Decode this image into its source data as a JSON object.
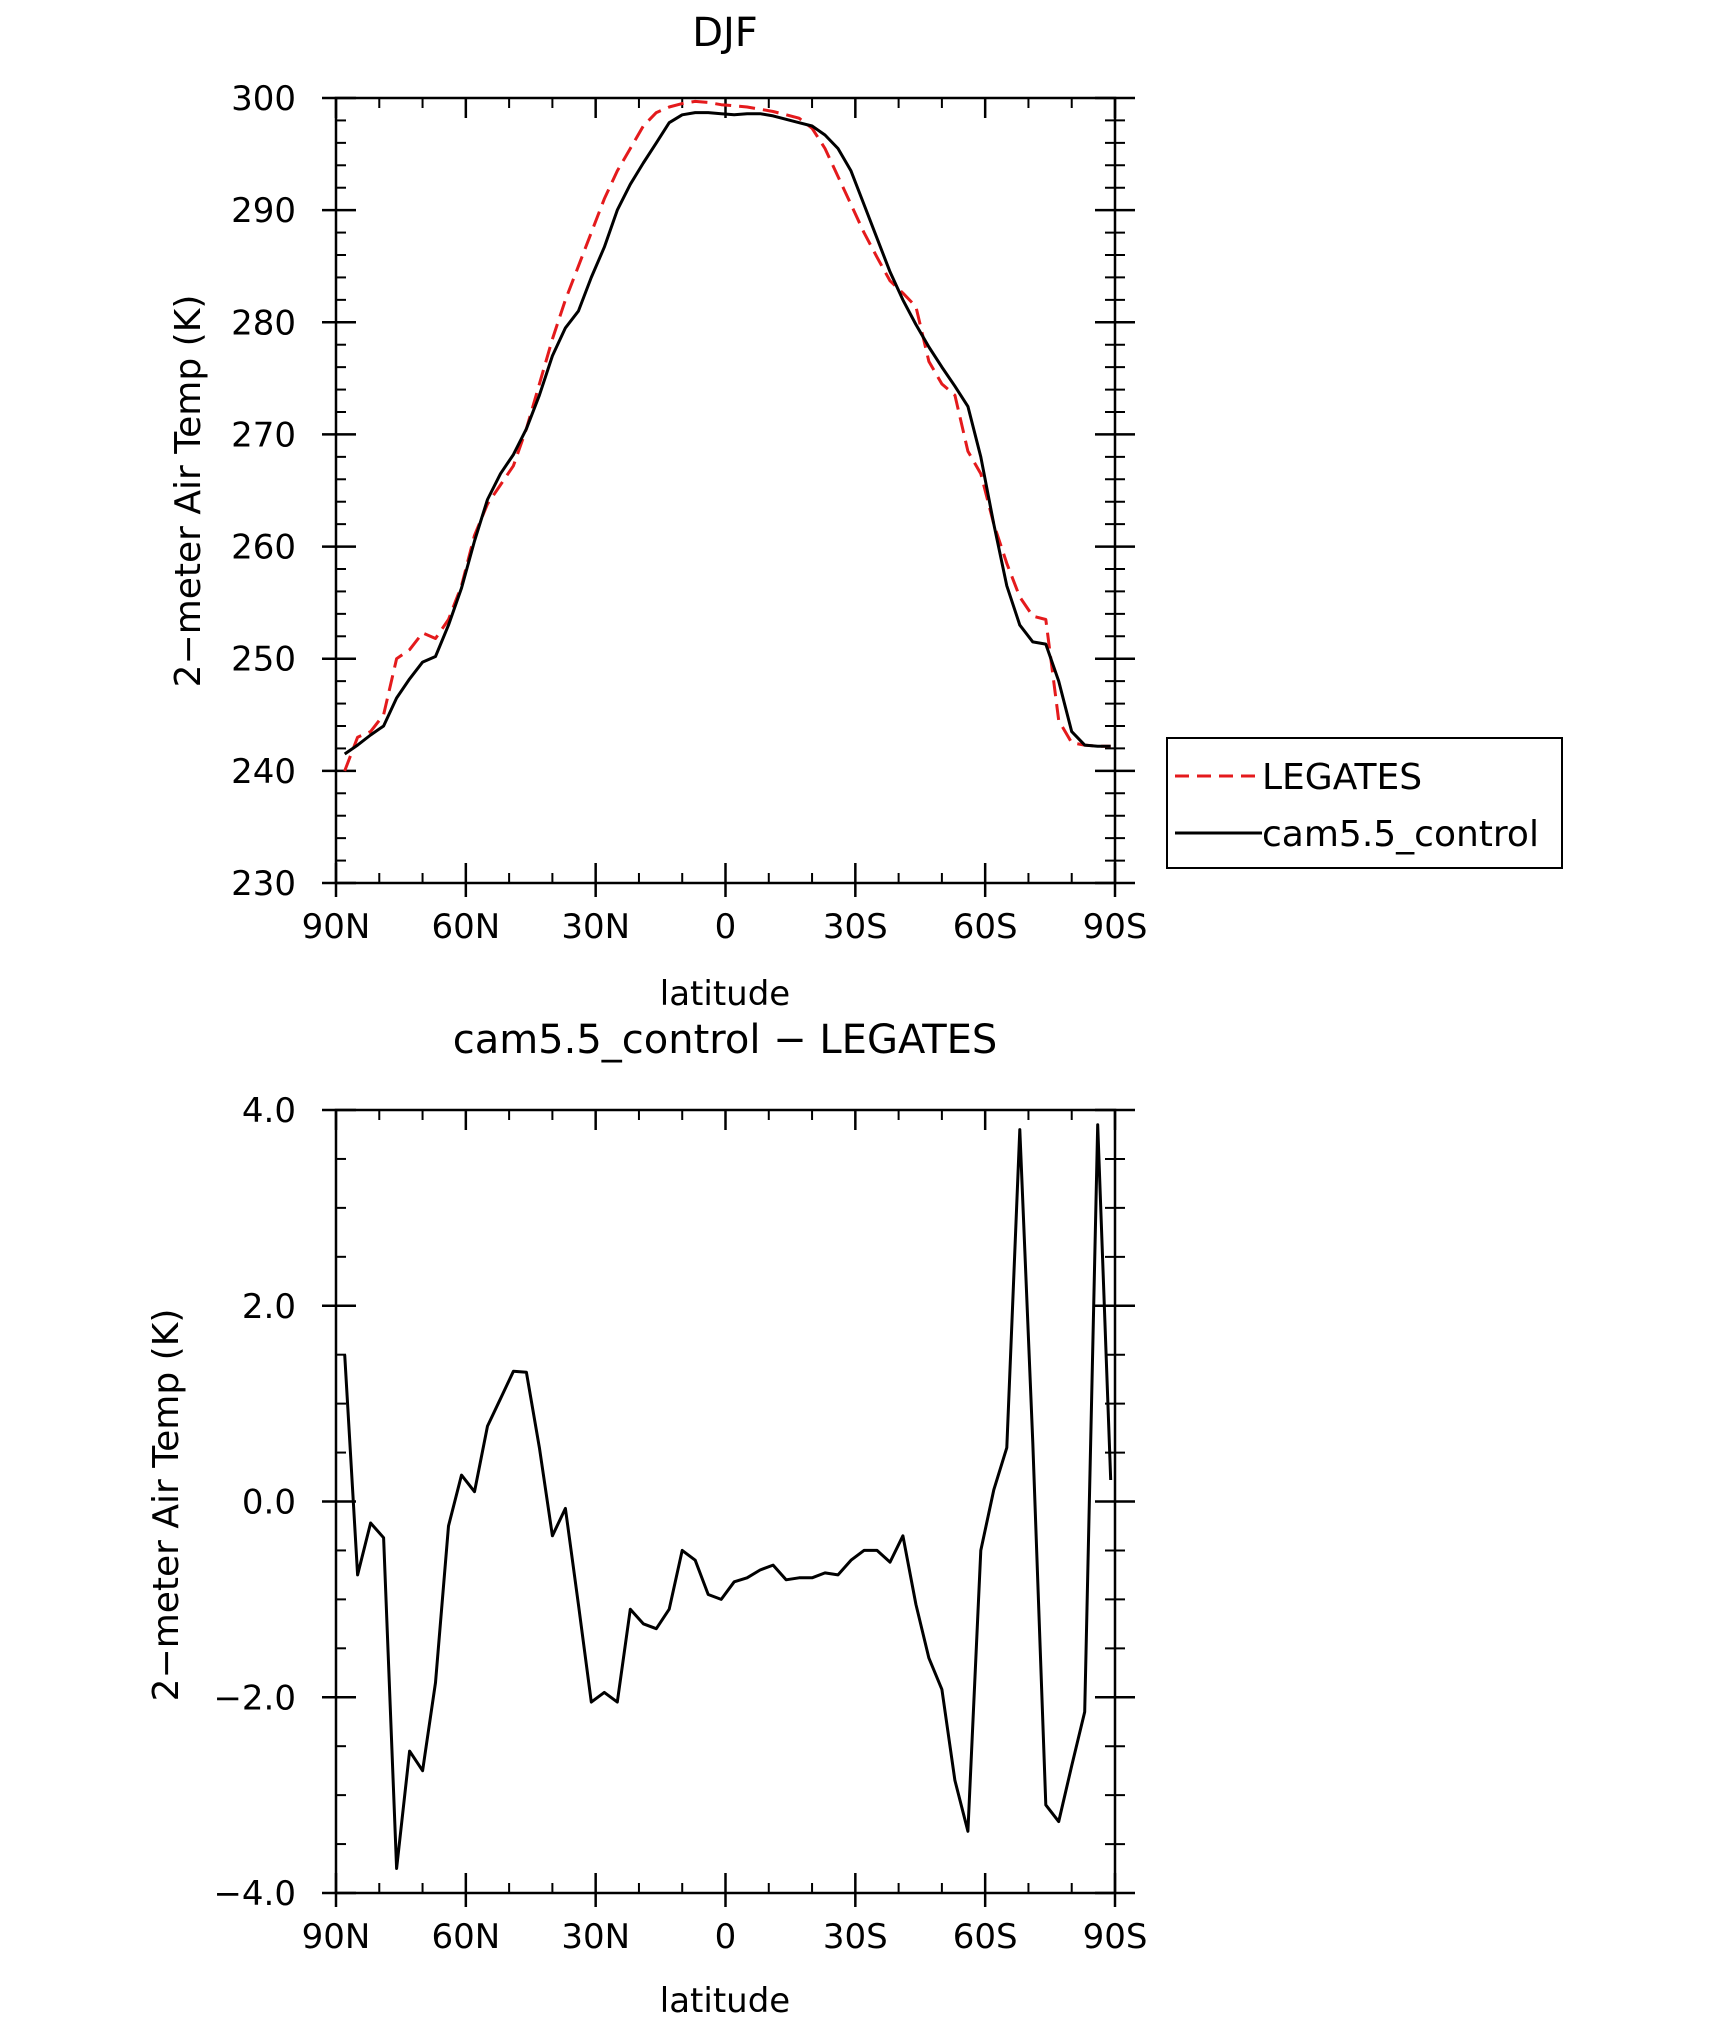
{
  "chart_data": [
    {
      "type": "line",
      "title": "DJF",
      "xlabel": "latitude",
      "ylabel": "2−meter Air Temp (K)",
      "xlim": [
        90,
        -90
      ],
      "ylim": [
        230,
        300
      ],
      "x_ticks": [
        90,
        60,
        30,
        0,
        -30,
        -60,
        -90
      ],
      "x_tick_labels": [
        "90N",
        "60N",
        "30N",
        "0",
        "30S",
        "60S",
        "90S"
      ],
      "y_ticks": [
        230,
        240,
        250,
        260,
        270,
        280,
        290,
        300
      ],
      "y_tick_labels": [
        "230",
        "240",
        "250",
        "260",
        "270",
        "280",
        "290",
        "300"
      ],
      "legend": {
        "position": "right",
        "entries": [
          "LEGATES",
          "cam5.5_control"
        ]
      },
      "series": [
        {
          "name": "LEGATES",
          "color": "#e41a1c",
          "dash": "dashed",
          "x": [
            88,
            85,
            82,
            79,
            76,
            73,
            70,
            67,
            64,
            61,
            58,
            55,
            52,
            49,
            46,
            43,
            40,
            37,
            34,
            31,
            28,
            25,
            22,
            19,
            16,
            13,
            10,
            7,
            4,
            1,
            -2,
            -5,
            -8,
            -11,
            -14,
            -17,
            -20,
            -23,
            -26,
            -29,
            -32,
            -35,
            -38,
            -41,
            -44,
            -47,
            -50,
            -53,
            -56,
            -59,
            -62,
            -65,
            -68,
            -71,
            -74,
            -77,
            -80,
            -83,
            -86,
            -89
          ],
          "values": [
            240.0,
            243.0,
            243.5,
            245.0,
            250.0,
            250.8,
            252.3,
            251.8,
            253.5,
            256.5,
            261.0,
            263.8,
            265.5,
            267.2,
            270.5,
            274.5,
            278.5,
            282.0,
            285.0,
            288.0,
            291.0,
            293.5,
            295.5,
            297.5,
            298.7,
            299.2,
            299.5,
            299.7,
            299.6,
            299.4,
            299.3,
            299.2,
            299.0,
            298.8,
            298.5,
            298.2,
            297.3,
            295.5,
            293.0,
            290.5,
            288.0,
            285.8,
            283.7,
            282.6,
            281.4,
            276.5,
            274.5,
            273.5,
            268.5,
            266.5,
            262.0,
            258.5,
            255.5,
            253.8,
            253.5,
            244.5,
            242.5,
            242.3,
            242.2,
            242.2
          ]
        },
        {
          "name": "cam5.5_control",
          "color": "#000000",
          "dash": "solid",
          "x": [
            88,
            85,
            82,
            79,
            76,
            73,
            70,
            67,
            64,
            61,
            58,
            55,
            52,
            49,
            46,
            43,
            40,
            37,
            34,
            31,
            28,
            25,
            22,
            19,
            16,
            13,
            10,
            7,
            4,
            1,
            -2,
            -5,
            -8,
            -11,
            -14,
            -17,
            -20,
            -23,
            -26,
            -29,
            -32,
            -35,
            -38,
            -41,
            -44,
            -47,
            -50,
            -53,
            -56,
            -59,
            -62,
            -65,
            -68,
            -71,
            -74,
            -77,
            -80,
            -83,
            -86,
            -89
          ],
          "values": [
            241.5,
            242.3,
            243.2,
            244.0,
            246.5,
            248.2,
            249.7,
            250.2,
            253.0,
            256.3,
            260.5,
            264.2,
            266.5,
            268.2,
            270.5,
            273.5,
            277.0,
            279.5,
            281.0,
            284.0,
            286.7,
            290.0,
            292.3,
            294.2,
            296.0,
            297.8,
            298.5,
            298.7,
            298.7,
            298.6,
            298.5,
            298.6,
            298.6,
            298.4,
            298.1,
            297.8,
            297.5,
            296.7,
            295.5,
            293.5,
            290.5,
            287.5,
            284.5,
            282.0,
            279.8,
            277.8,
            276.0,
            274.3,
            272.5,
            268.0,
            262.0,
            256.5,
            253.0,
            251.5,
            251.3,
            248.0,
            243.5,
            242.3,
            242.2,
            242.2
          ]
        }
      ]
    },
    {
      "type": "line",
      "title": "cam5.5_control − LEGATES",
      "xlabel": "latitude",
      "ylabel": "2−meter Air Temp (K)",
      "xlim": [
        90,
        -90
      ],
      "ylim": [
        -4.0,
        4.0
      ],
      "x_ticks": [
        90,
        60,
        30,
        0,
        -30,
        -60,
        -90
      ],
      "x_tick_labels": [
        "90N",
        "60N",
        "30N",
        "0",
        "30S",
        "60S",
        "90S"
      ],
      "y_ticks": [
        -4.0,
        -2.0,
        0.0,
        2.0,
        4.0
      ],
      "y_tick_labels": [
        "−4.0",
        "−2.0",
        "0.0",
        "2.0",
        "4.0"
      ],
      "series": [
        {
          "color": "#000000",
          "dash": "solid",
          "x": [
            88,
            85,
            82,
            79,
            76,
            73,
            70,
            67,
            64,
            61,
            58,
            55,
            52,
            49,
            46,
            43,
            40,
            37,
            34,
            31,
            28,
            25,
            22,
            19,
            16,
            13,
            10,
            7,
            4,
            1,
            -2,
            -5,
            -8,
            -11,
            -14,
            -17,
            -20,
            -23,
            -26,
            -29,
            -32,
            -35,
            -38,
            -41,
            -44,
            -47,
            -50,
            -53,
            -56,
            -59,
            -62,
            -65,
            -68,
            -71,
            -74,
            -77,
            -80,
            -83,
            -86,
            -89
          ],
          "values": [
            1.5,
            -0.75,
            -0.22,
            -0.37,
            -3.75,
            -2.55,
            -2.75,
            -1.85,
            -0.25,
            0.27,
            0.1,
            0.77,
            1.05,
            1.33,
            1.32,
            0.55,
            -0.35,
            -0.07,
            -1.05,
            -2.05,
            -1.95,
            -2.05,
            -1.1,
            -1.25,
            -1.3,
            -1.1,
            -0.5,
            -0.6,
            -0.95,
            -1.0,
            -0.82,
            -0.78,
            -0.7,
            -0.65,
            -0.8,
            -0.78,
            -0.78,
            -0.73,
            -0.75,
            -0.6,
            -0.5,
            -0.5,
            -0.62,
            -0.35,
            -1.05,
            -1.6,
            -1.92,
            -2.85,
            -3.37,
            -0.5,
            0.12,
            0.55,
            3.8,
            0.6,
            -3.1,
            -3.27,
            -2.7,
            -2.15,
            3.85,
            0.22
          ]
        }
      ]
    }
  ]
}
